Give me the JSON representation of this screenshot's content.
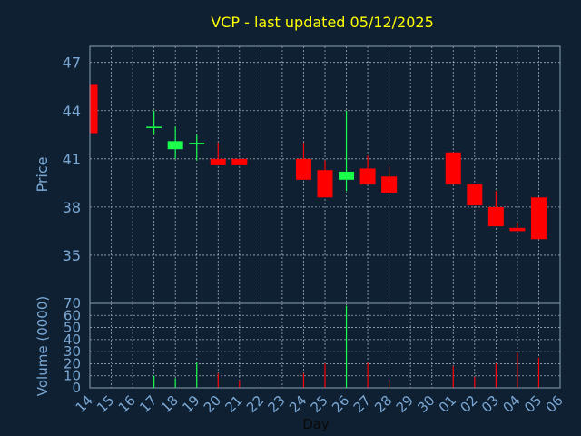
{
  "chart_data": {
    "type": "candlestick",
    "title": "VCP - last updated 05/12/2025",
    "xlabel": "Day",
    "ylabel": "Price",
    "volume_label": "Volume (0000)",
    "categories": [
      "14",
      "15",
      "16",
      "17",
      "18",
      "19",
      "20",
      "21",
      "22",
      "23",
      "24",
      "25",
      "26",
      "27",
      "28",
      "29",
      "30",
      "01",
      "02",
      "03",
      "04",
      "05",
      "06"
    ],
    "price_ylim": [
      32,
      48
    ],
    "price_ticks": [
      35,
      38,
      41,
      44,
      47
    ],
    "volume_ylim": [
      0,
      70
    ],
    "volume_ticks": [
      0,
      10,
      20,
      30,
      40,
      50,
      60,
      70
    ],
    "grid": true,
    "candles": [
      {
        "day": "14",
        "open": 45.6,
        "high": 45.6,
        "low": 42.6,
        "close": 42.6,
        "volume": 0
      },
      {
        "day": "17",
        "open": 43.0,
        "high": 44.0,
        "low": 42.5,
        "close": 43.0,
        "volume": 10
      },
      {
        "day": "18",
        "open": 41.6,
        "high": 43.0,
        "low": 41.0,
        "close": 42.1,
        "volume": 8
      },
      {
        "day": "19",
        "open": 41.9,
        "high": 42.5,
        "low": 40.9,
        "close": 42.0,
        "volume": 21
      },
      {
        "day": "20",
        "open": 41.0,
        "high": 42.0,
        "low": 40.6,
        "close": 40.6,
        "volume": 12
      },
      {
        "day": "21",
        "open": 41.0,
        "high": 41.0,
        "low": 40.6,
        "close": 40.6,
        "volume": 6
      },
      {
        "day": "24",
        "open": 41.0,
        "high": 42.0,
        "low": 39.7,
        "close": 39.7,
        "volume": 12
      },
      {
        "day": "25",
        "open": 40.3,
        "high": 40.9,
        "low": 38.6,
        "close": 38.6,
        "volume": 20
      },
      {
        "day": "26",
        "open": 39.7,
        "high": 44.0,
        "low": 39.0,
        "close": 40.2,
        "volume": 68
      },
      {
        "day": "27",
        "open": 40.4,
        "high": 41.2,
        "low": 39.4,
        "close": 39.4,
        "volume": 21
      },
      {
        "day": "28",
        "open": 39.9,
        "high": 40.5,
        "low": 38.9,
        "close": 38.9,
        "volume": 7
      },
      {
        "day": "01",
        "open": 41.4,
        "high": 41.4,
        "low": 39.4,
        "close": 39.4,
        "volume": 18
      },
      {
        "day": "02",
        "open": 39.4,
        "high": 39.4,
        "low": 38.1,
        "close": 38.1,
        "volume": 9
      },
      {
        "day": "03",
        "open": 38.0,
        "high": 39.0,
        "low": 36.8,
        "close": 36.8,
        "volume": 20
      },
      {
        "day": "04",
        "open": 36.7,
        "high": 37.0,
        "low": 36.5,
        "close": 36.5,
        "volume": 29
      },
      {
        "day": "05",
        "open": 38.6,
        "high": 38.6,
        "low": 36.0,
        "close": 36.0,
        "volume": 25
      }
    ],
    "colors": {
      "background": "#0f2033",
      "up": "#19ff4c",
      "down": "#ff0000",
      "title": "#ffff00",
      "axis_label": "#7aa8d4",
      "tick_label": "#7aa8d4",
      "grid": "#cfd8e0",
      "frame": "#8aa0b4"
    }
  }
}
